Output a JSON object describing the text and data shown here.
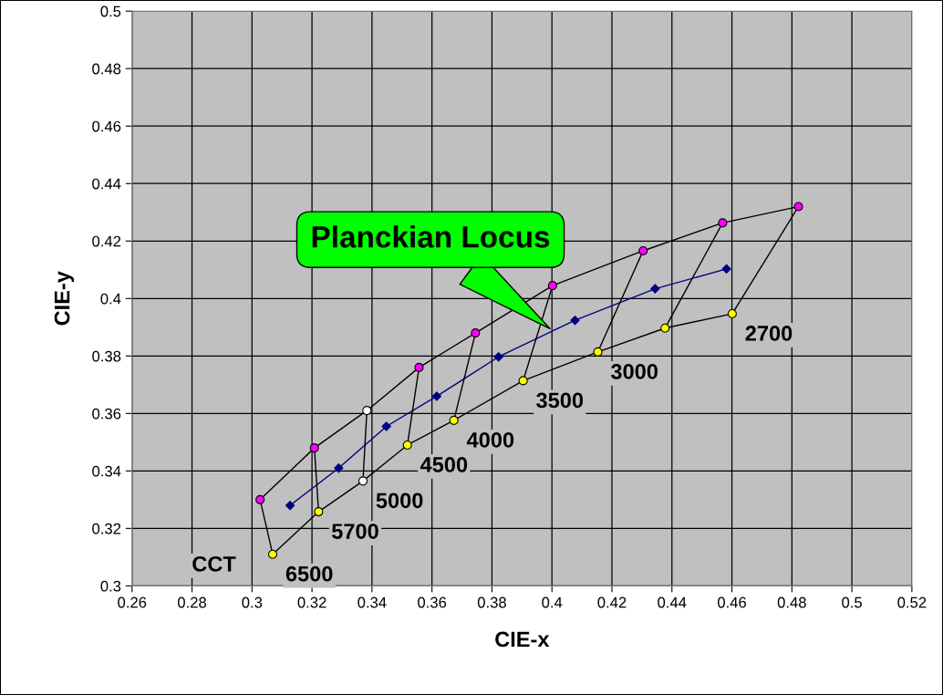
{
  "chart_data": {
    "type": "line",
    "xlabel": "CIE-x",
    "ylabel": "CIE-y",
    "xlim": [
      0.26,
      0.52
    ],
    "xticks": [
      0.26,
      0.28,
      0.3,
      0.32,
      0.34,
      0.36,
      0.38,
      0.4,
      0.42,
      0.44,
      0.46,
      0.48,
      0.5,
      0.52
    ],
    "ylim": [
      0.3,
      0.5
    ],
    "yticks": [
      0.3,
      0.32,
      0.34,
      0.36,
      0.38,
      0.4,
      0.42,
      0.44,
      0.46,
      0.48,
      0.5
    ],
    "grid": true,
    "series": [
      {
        "color": "#000000",
        "marker": "circle",
        "x": [
          0.3027,
          0.3208,
          0.3383,
          0.3557,
          0.3745,
          0.4002,
          0.4304,
          0.4569,
          0.4822
        ],
        "values": [
          0.33,
          0.348,
          0.361,
          0.376,
          0.388,
          0.4045,
          0.4166,
          0.4263,
          0.432
        ],
        "colors": [
          "#ff00ff",
          "#ff00ff",
          "#ffffff",
          "#ff00ff",
          "#ff00ff",
          "#ff00ff",
          "#ff00ff",
          "#ff00ff",
          "#ff00ff"
        ]
      },
      {
        "color": "#000000",
        "marker": "circle",
        "x": [
          0.3069,
          0.3222,
          0.337,
          0.3518,
          0.3673,
          0.3904,
          0.4153,
          0.4377,
          0.4601
        ],
        "values": [
          0.311,
          0.3258,
          0.3365,
          0.349,
          0.3576,
          0.3714,
          0.3814,
          0.3897,
          0.3947
        ],
        "colors": [
          "#ffff00",
          "#ffff00",
          "#ffffff",
          "#ffff00",
          "#ffff00",
          "#ffff00",
          "#ffff00",
          "#ffff00",
          "#ffff00"
        ]
      },
      {
        "color": "#000080",
        "marker": "diamond",
        "x": [
          0.3127,
          0.3289,
          0.3448,
          0.3616,
          0.3822,
          0.4077,
          0.4344,
          0.4582
        ],
        "values": [
          0.328,
          0.341,
          0.3555,
          0.366,
          0.3797,
          0.3924,
          0.4034,
          0.4103
        ]
      },
      {
        "type": "line",
        "color": "#000000",
        "marker": "none",
        "x": [
          0.3027,
          0.3069
        ],
        "values": [
          0.33,
          0.311
        ]
      },
      {
        "type": "line",
        "color": "#000000",
        "marker": "none",
        "x": [
          0.3208,
          0.3222
        ],
        "values": [
          0.348,
          0.3258
        ]
      },
      {
        "type": "line",
        "color": "#000000",
        "marker": "none",
        "x": [
          0.3383,
          0.337
        ],
        "values": [
          0.361,
          0.3365
        ]
      },
      {
        "type": "line",
        "color": "#000000",
        "marker": "none",
        "x": [
          0.3557,
          0.3518
        ],
        "values": [
          0.376,
          0.349
        ]
      },
      {
        "type": "line",
        "color": "#000000",
        "marker": "none",
        "x": [
          0.3745,
          0.3673
        ],
        "values": [
          0.388,
          0.3576
        ]
      },
      {
        "type": "line",
        "color": "#000000",
        "marker": "none",
        "x": [
          0.4002,
          0.3904
        ],
        "values": [
          0.4045,
          0.3714
        ]
      },
      {
        "type": "line",
        "color": "#000000",
        "marker": "none",
        "x": [
          0.4304,
          0.4153
        ],
        "values": [
          0.4166,
          0.3814
        ]
      },
      {
        "type": "line",
        "color": "#000000",
        "marker": "none",
        "x": [
          0.4569,
          0.4377
        ],
        "values": [
          0.4263,
          0.3897
        ]
      },
      {
        "type": "line",
        "color": "#000000",
        "marker": "none",
        "x": [
          0.4822,
          0.4601
        ],
        "values": [
          0.432,
          0.3947
        ]
      }
    ],
    "annotations": [
      {
        "text": "6500",
        "x": 0.3069,
        "y": 0.311
      },
      {
        "text": "5700",
        "x": 0.3222,
        "y": 0.3258
      },
      {
        "text": "5000",
        "x": 0.337,
        "y": 0.3365
      },
      {
        "text": "4500",
        "x": 0.3518,
        "y": 0.349
      },
      {
        "text": "4000",
        "x": 0.3673,
        "y": 0.3576
      },
      {
        "text": "3500",
        "x": 0.3904,
        "y": 0.3714
      },
      {
        "text": "3000",
        "x": 0.4153,
        "y": 0.3814
      },
      {
        "text": "2700",
        "x": 0.4601,
        "y": 0.3947
      },
      "CCT",
      {
        "text": "Planckian Locus",
        "x": 0.4,
        "y": 0.389
      }
    ]
  }
}
